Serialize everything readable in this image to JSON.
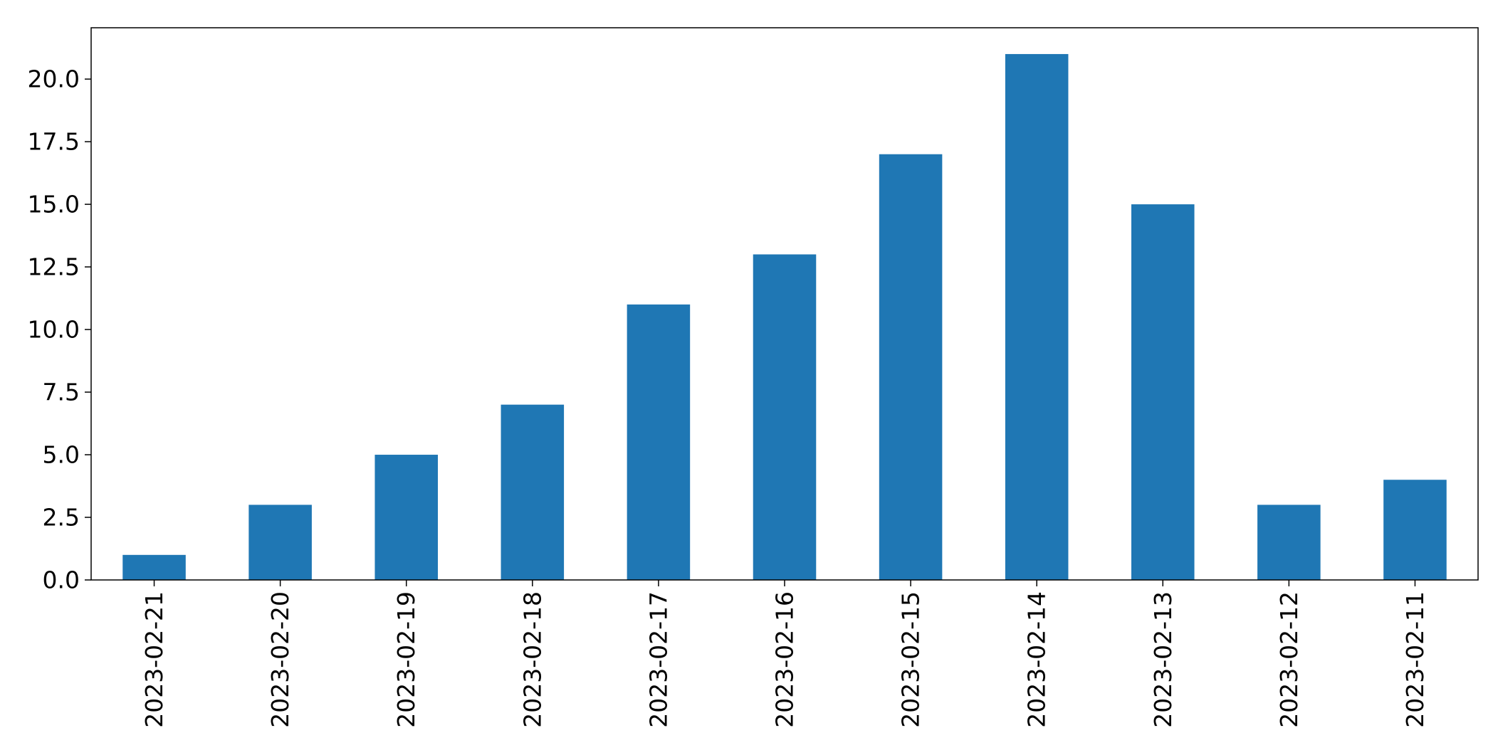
{
  "chart_data": {
    "type": "bar",
    "title": "",
    "xlabel": "",
    "ylabel": "",
    "categories": [
      "2023-02-21",
      "2023-02-20",
      "2023-02-19",
      "2023-02-18",
      "2023-02-17",
      "2023-02-16",
      "2023-02-15",
      "2023-02-14",
      "2023-02-13",
      "2023-02-12",
      "2023-02-11"
    ],
    "values": [
      1,
      3,
      5,
      7,
      11,
      13,
      17,
      21,
      15,
      3,
      4
    ],
    "ylim": [
      0,
      22.05
    ],
    "yticks": [
      "0.0",
      "2.5",
      "5.0",
      "7.5",
      "10.0",
      "12.5",
      "15.0",
      "17.5",
      "20.0"
    ],
    "grid": false,
    "legend": "none",
    "colors": {
      "bar": "#1f77b4"
    }
  }
}
